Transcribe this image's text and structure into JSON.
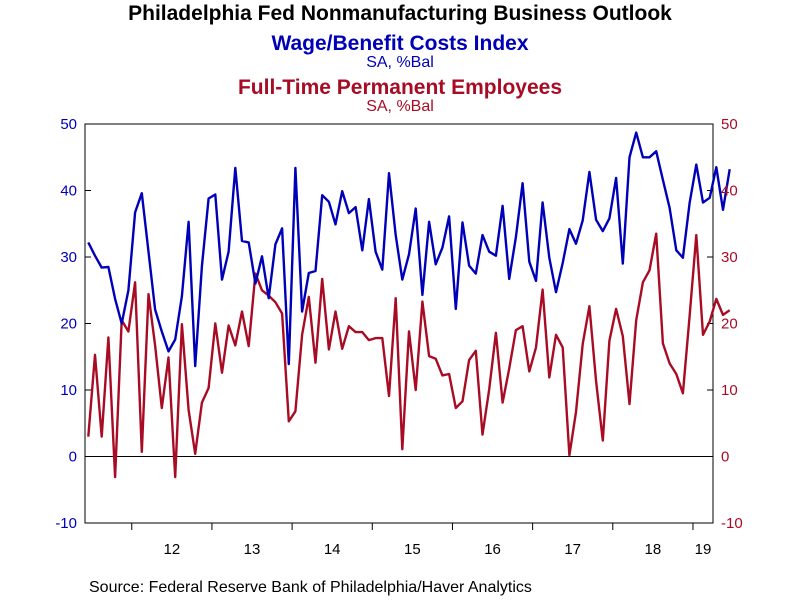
{
  "title": "Philadelphia Fed Nonmanufacturing Business Outlook",
  "source": "Source:  Federal Reserve Bank of Philadelphia/Haver Analytics",
  "chart_data": {
    "type": "line",
    "title": "Philadelphia Fed Nonmanufacturing Business Outlook",
    "x_unit": "month",
    "x_start": "2011-06",
    "x_end": "2019-03",
    "x_tick_labels": [
      "12",
      "13",
      "14",
      "15",
      "16",
      "17",
      "18",
      "19"
    ],
    "ylim": [
      -10,
      50
    ],
    "y_ticks": [
      -10,
      0,
      10,
      20,
      30,
      40,
      50
    ],
    "grid": false,
    "zero_line": true,
    "series": [
      {
        "name": "Wage/Benefit Costs Index",
        "unit": "SA, %Bal",
        "axis": "left",
        "color": "#0000b8",
        "values": [
          32.2,
          30.2,
          28.4,
          28.5,
          23.7,
          20.0,
          25.0,
          36.7,
          39.6,
          30.8,
          22.1,
          18.8,
          15.8,
          17.6,
          24.1,
          35.3,
          13.6,
          28.6,
          38.8,
          39.4,
          26.6,
          30.8,
          43.4,
          32.4,
          32.2,
          26.0,
          30.1,
          23.8,
          31.9,
          34.3,
          13.9,
          43.4,
          21.8,
          27.6,
          27.9,
          39.3,
          38.3,
          34.9,
          39.9,
          36.6,
          37.5,
          31.0,
          38.7,
          30.8,
          28.1,
          42.6,
          33.3,
          26.6,
          30.4,
          37.3,
          24.3,
          35.3,
          28.9,
          31.4,
          36.1,
          22.2,
          35.2,
          28.7,
          27.5,
          33.3,
          30.8,
          30.2,
          37.7,
          26.7,
          33.0,
          41.1,
          29.3,
          26.4,
          38.2,
          29.9,
          24.7,
          29.1,
          34.2,
          32.0,
          35.5,
          42.8,
          35.6,
          33.9,
          35.8,
          41.9,
          29.0,
          45.0,
          48.7,
          45.0,
          45.0,
          45.9,
          41.6,
          37.4,
          31.0,
          29.9,
          38.1,
          43.9,
          38.2,
          38.9,
          43.5,
          37.1,
          43.2
        ]
      },
      {
        "name": "Full-Time Permanent Employees",
        "unit": "SA, %Bal",
        "axis": "right",
        "color": "#a80c24",
        "values": [
          3.0,
          15.3,
          3.0,
          17.9,
          -3.1,
          20.5,
          18.8,
          26.2,
          0.7,
          24.4,
          16.7,
          7.3,
          14.9,
          -3.1,
          19.9,
          7.0,
          0.4,
          8.1,
          10.3,
          20.0,
          12.6,
          19.7,
          16.7,
          21.8,
          16.6,
          27.5,
          25.0,
          24.2,
          23.2,
          21.5,
          5.3,
          6.8,
          18.3,
          24.0,
          14.1,
          26.7,
          16.1,
          21.8,
          16.2,
          19.6,
          18.7,
          18.7,
          17.5,
          17.8,
          17.8,
          9.1,
          23.8,
          1.1,
          18.8,
          10.0,
          23.3,
          15.1,
          14.7,
          12.2,
          12.4,
          7.3,
          8.3,
          14.5,
          15.9,
          3.3,
          10.1,
          18.6,
          8.1,
          13.2,
          19.0,
          19.6,
          12.8,
          16.4,
          25.1,
          11.9,
          18.3,
          16.4,
          0.2,
          6.7,
          16.9,
          22.6,
          11.3,
          2.4,
          17.4,
          22.2,
          18.1,
          7.9,
          20.5,
          26.2,
          28.0,
          33.5,
          17.0,
          14.0,
          12.4,
          9.5,
          21.1,
          33.3,
          18.3,
          20.3,
          23.7,
          21.3,
          22.0
        ]
      }
    ],
    "legend": [
      {
        "text": "Wage/Benefit Costs Index",
        "unit": "SA, %Bal",
        "color": "#0000b8"
      },
      {
        "text": "Full-Time Permanent Employees",
        "unit": "SA, %Bal",
        "color": "#a80c24"
      }
    ],
    "colors": {
      "left_axis_labels": "#0000b8",
      "right_axis_labels": "#a80c24",
      "axes": "#000000"
    }
  }
}
